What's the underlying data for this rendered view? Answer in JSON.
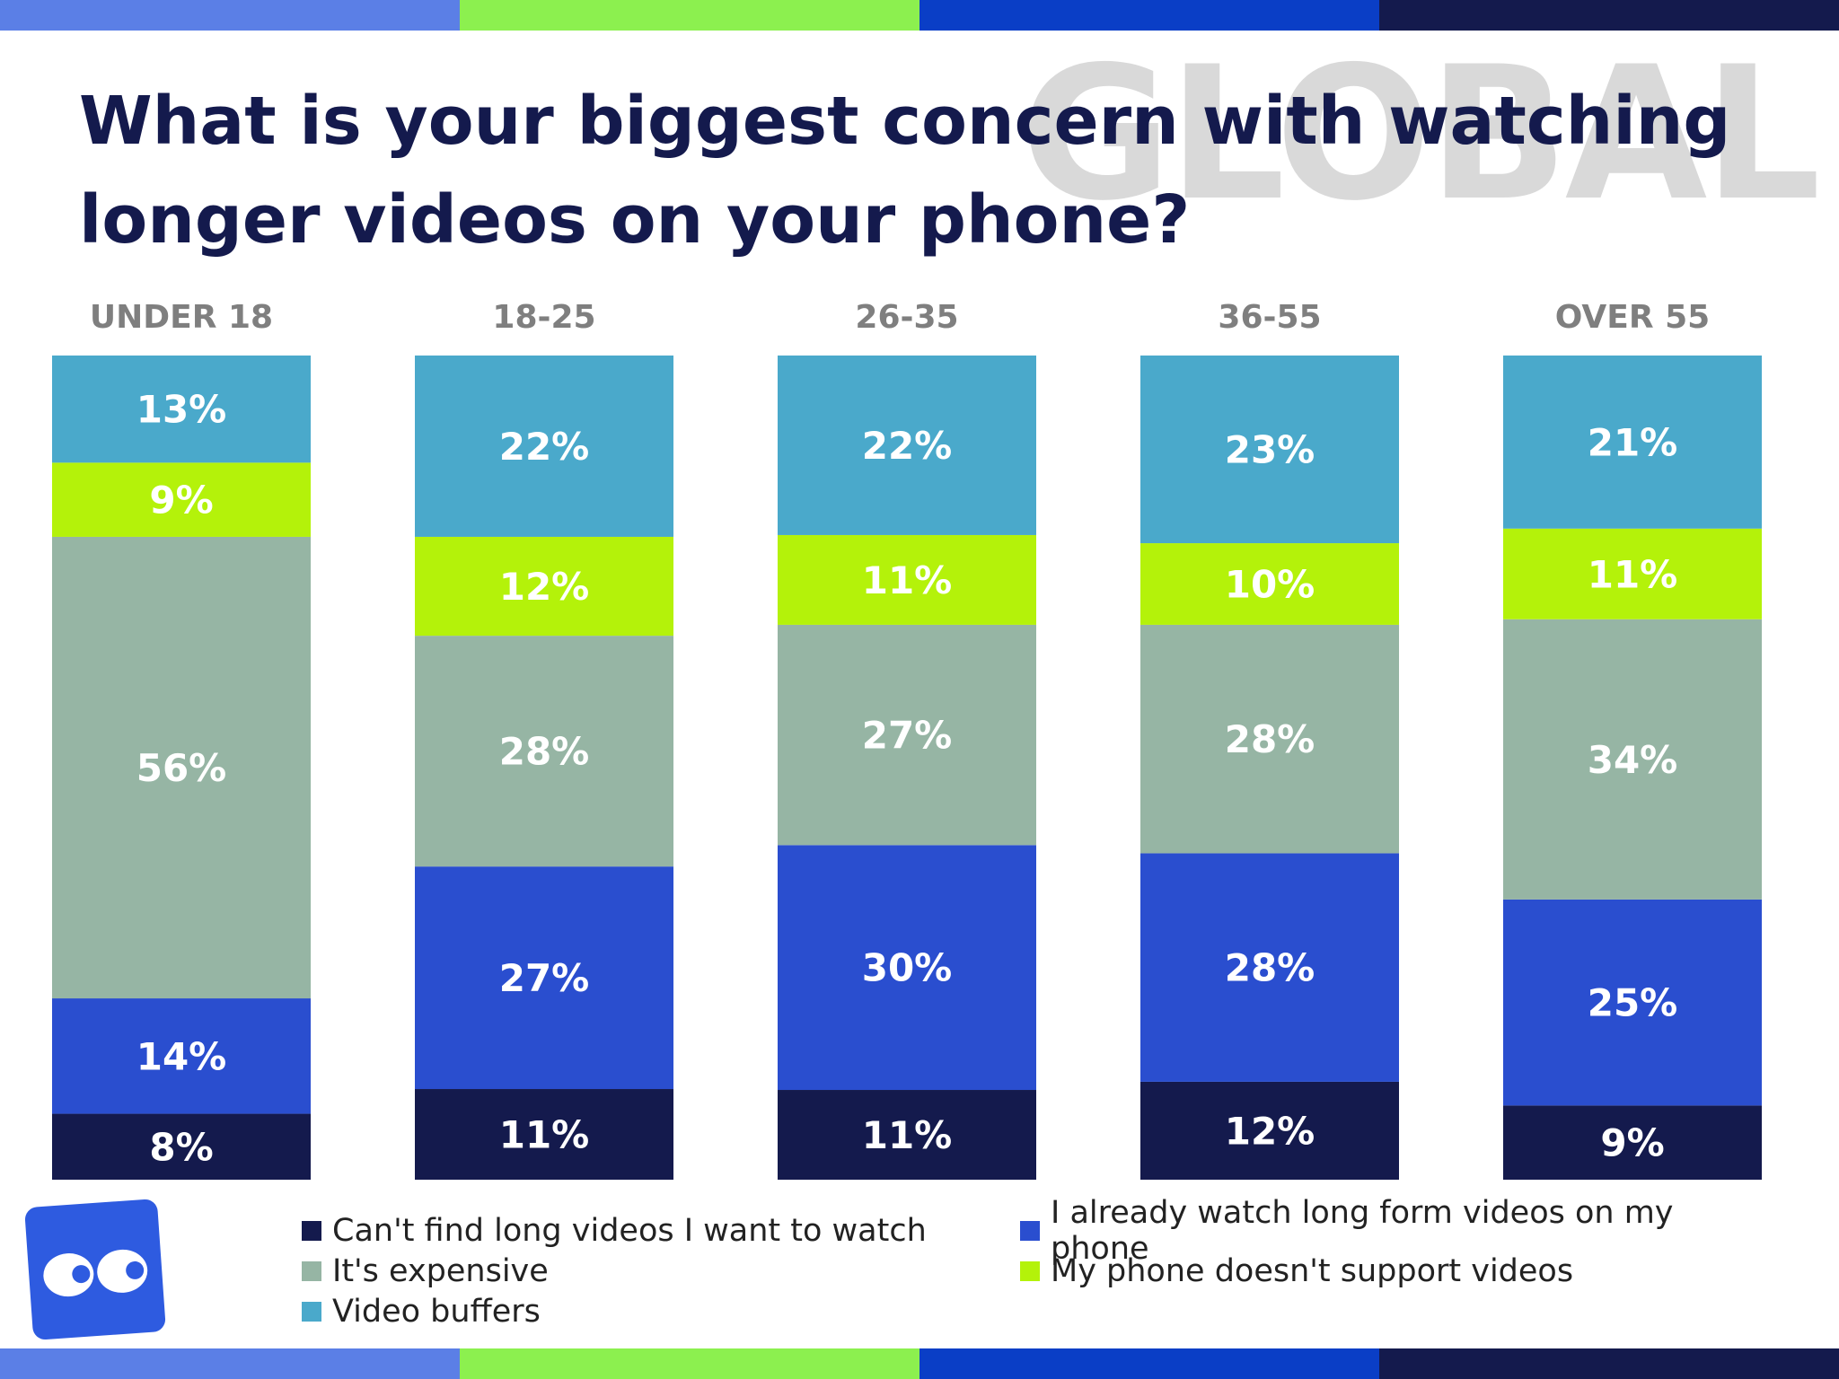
{
  "header": {
    "title": "What is your biggest concern with watching longer videos on your phone?",
    "watermark": "GLOBAL"
  },
  "colors": {
    "stripe": [
      "#5b7fe6",
      "#8cf04f",
      "#0a3ec6",
      "#141a4d"
    ],
    "title": "#141a4d",
    "category_label": "#7f7f7f",
    "segment_label": "#ffffff"
  },
  "logo": {
    "icon": "eyes-logo-icon",
    "color": "#2e5be0"
  },
  "chart_data": {
    "type": "bar",
    "stacked": true,
    "categories": [
      "UNDER 18",
      "18-25",
      "26-35",
      "36-55",
      "OVER 55"
    ],
    "series": [
      {
        "name": "Can't find long videos I want to watch",
        "color": "#141a4d",
        "values": [
          8,
          11,
          11,
          12,
          9
        ]
      },
      {
        "name": "I already watch long form videos on my phone",
        "color": "#2a4ecf",
        "values": [
          14,
          27,
          30,
          28,
          25
        ]
      },
      {
        "name": "It's expensive",
        "color": "#96b5a4",
        "values": [
          56,
          28,
          27,
          28,
          34
        ]
      },
      {
        "name": "My phone doesn't support videos",
        "color": "#b4f20a",
        "values": [
          9,
          12,
          11,
          10,
          11
        ]
      },
      {
        "name": "Video buffers",
        "color": "#4aa9cb",
        "values": [
          13,
          22,
          22,
          23,
          21
        ]
      }
    ],
    "value_suffix": "%",
    "legend": "bottom",
    "grid": false
  },
  "legend": [
    {
      "label": "Can't find long videos I want to watch",
      "color": "#141a4d"
    },
    {
      "label": "I already watch long form videos on my phone",
      "color": "#2a4ecf"
    },
    {
      "label": "It's expensive",
      "color": "#96b5a4"
    },
    {
      "label": "My phone doesn't support videos",
      "color": "#b4f20a"
    },
    {
      "label": "Video buffers",
      "color": "#4aa9cb"
    }
  ]
}
